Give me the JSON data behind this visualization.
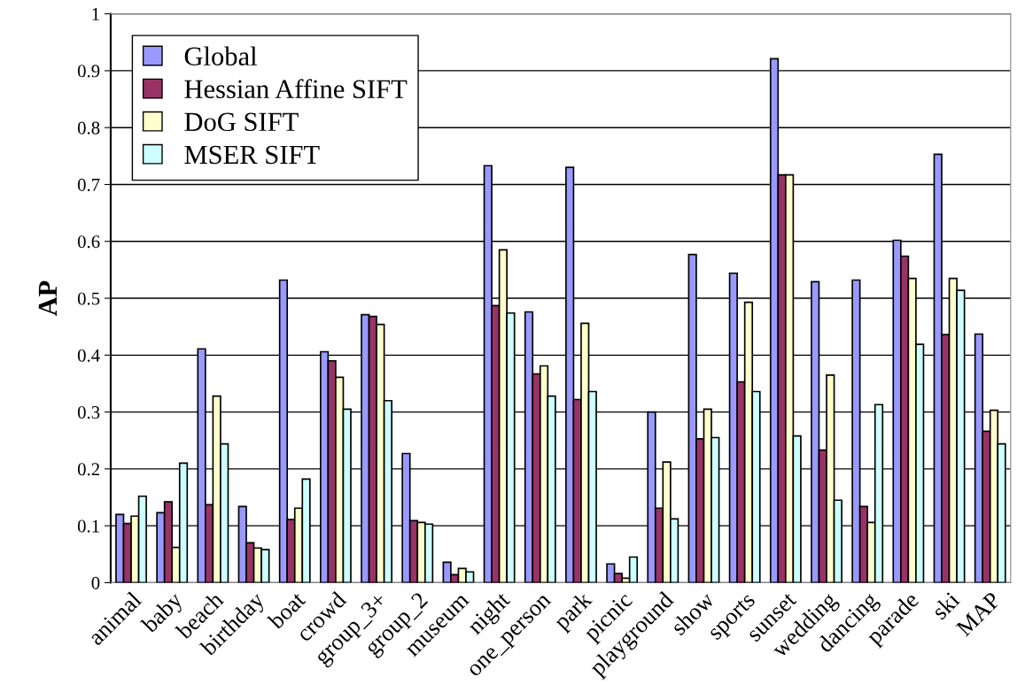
{
  "chart_data": {
    "type": "bar",
    "ylabel": "AP",
    "categories": [
      "animal",
      "baby",
      "beach",
      "birthday",
      "boat",
      "crowd",
      "group_3+",
      "group_2",
      "museum",
      "night",
      "one_person",
      "park",
      "picnic",
      "playground",
      "show",
      "sports",
      "sunset",
      "wedding",
      "dancing",
      "parade",
      "ski",
      "MAP"
    ],
    "series": [
      {
        "name": "Global",
        "color": "#9999ff",
        "values": [
          0.12,
          0.123,
          0.411,
          0.134,
          0.532,
          0.406,
          0.471,
          0.227,
          0.036,
          0.733,
          0.476,
          0.73,
          0.033,
          0.3,
          0.577,
          0.544,
          0.921,
          0.529,
          0.532,
          0.602,
          0.753,
          0.437
        ]
      },
      {
        "name": "Hessian Affine SIFT",
        "color": "#993366",
        "values": [
          0.104,
          0.142,
          0.137,
          0.07,
          0.111,
          0.39,
          0.468,
          0.109,
          0.014,
          0.487,
          0.367,
          0.322,
          0.016,
          0.131,
          0.253,
          0.353,
          0.717,
          0.233,
          0.134,
          0.574,
          0.436,
          0.266
        ]
      },
      {
        "name": "DoG SIFT",
        "color": "#ffffcc",
        "values": [
          0.117,
          0.062,
          0.328,
          0.061,
          0.131,
          0.361,
          0.454,
          0.106,
          0.025,
          0.585,
          0.381,
          0.456,
          0.008,
          0.212,
          0.305,
          0.493,
          0.717,
          0.365,
          0.106,
          0.535,
          0.535,
          0.303
        ]
      },
      {
        "name": "MSER SIFT",
        "color": "#ccffff",
        "values": [
          0.152,
          0.21,
          0.244,
          0.058,
          0.182,
          0.305,
          0.32,
          0.103,
          0.019,
          0.474,
          0.328,
          0.336,
          0.045,
          0.112,
          0.255,
          0.336,
          0.258,
          0.145,
          0.313,
          0.419,
          0.514,
          0.244
        ]
      }
    ],
    "ylim": [
      0,
      1
    ],
    "yticks": [
      0,
      0.1,
      0.2,
      0.3,
      0.4,
      0.5,
      0.6,
      0.7,
      0.8,
      0.9,
      1
    ],
    "grid": "y",
    "legend": "top left"
  }
}
